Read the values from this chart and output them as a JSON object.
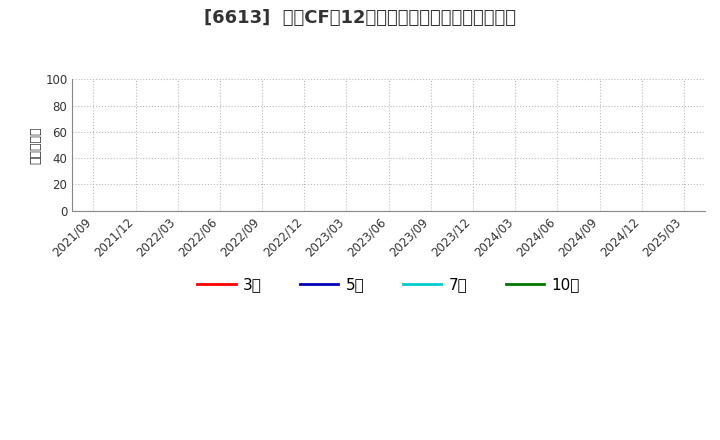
{
  "title": "[6613]  営業CFの12か月移動合計の標準偏差の推移",
  "ylabel": "（百万円）",
  "ylim": [
    0,
    100
  ],
  "yticks": [
    0,
    20,
    40,
    60,
    80,
    100
  ],
  "xticklabels": [
    "2021/09",
    "2021/12",
    "2022/03",
    "2022/06",
    "2022/09",
    "2022/12",
    "2023/03",
    "2023/06",
    "2023/09",
    "2023/12",
    "2024/03",
    "2024/06",
    "2024/09",
    "2024/12",
    "2025/03"
  ],
  "legend_entries": [
    {
      "label": "3年",
      "color": "#ff0000",
      "linewidth": 2.0
    },
    {
      "label": "5年",
      "color": "#0000bb",
      "linewidth": 2.0
    },
    {
      "label": "7年",
      "color": "#00cccc",
      "linewidth": 2.0
    },
    {
      "label": "10年",
      "color": "#007700",
      "linewidth": 2.0
    }
  ],
  "background_color": "#ffffff",
  "grid_color": "#bbbbbb",
  "title_fontsize": 13,
  "axis_label_fontsize": 9,
  "tick_fontsize": 8.5,
  "legend_fontsize": 11
}
